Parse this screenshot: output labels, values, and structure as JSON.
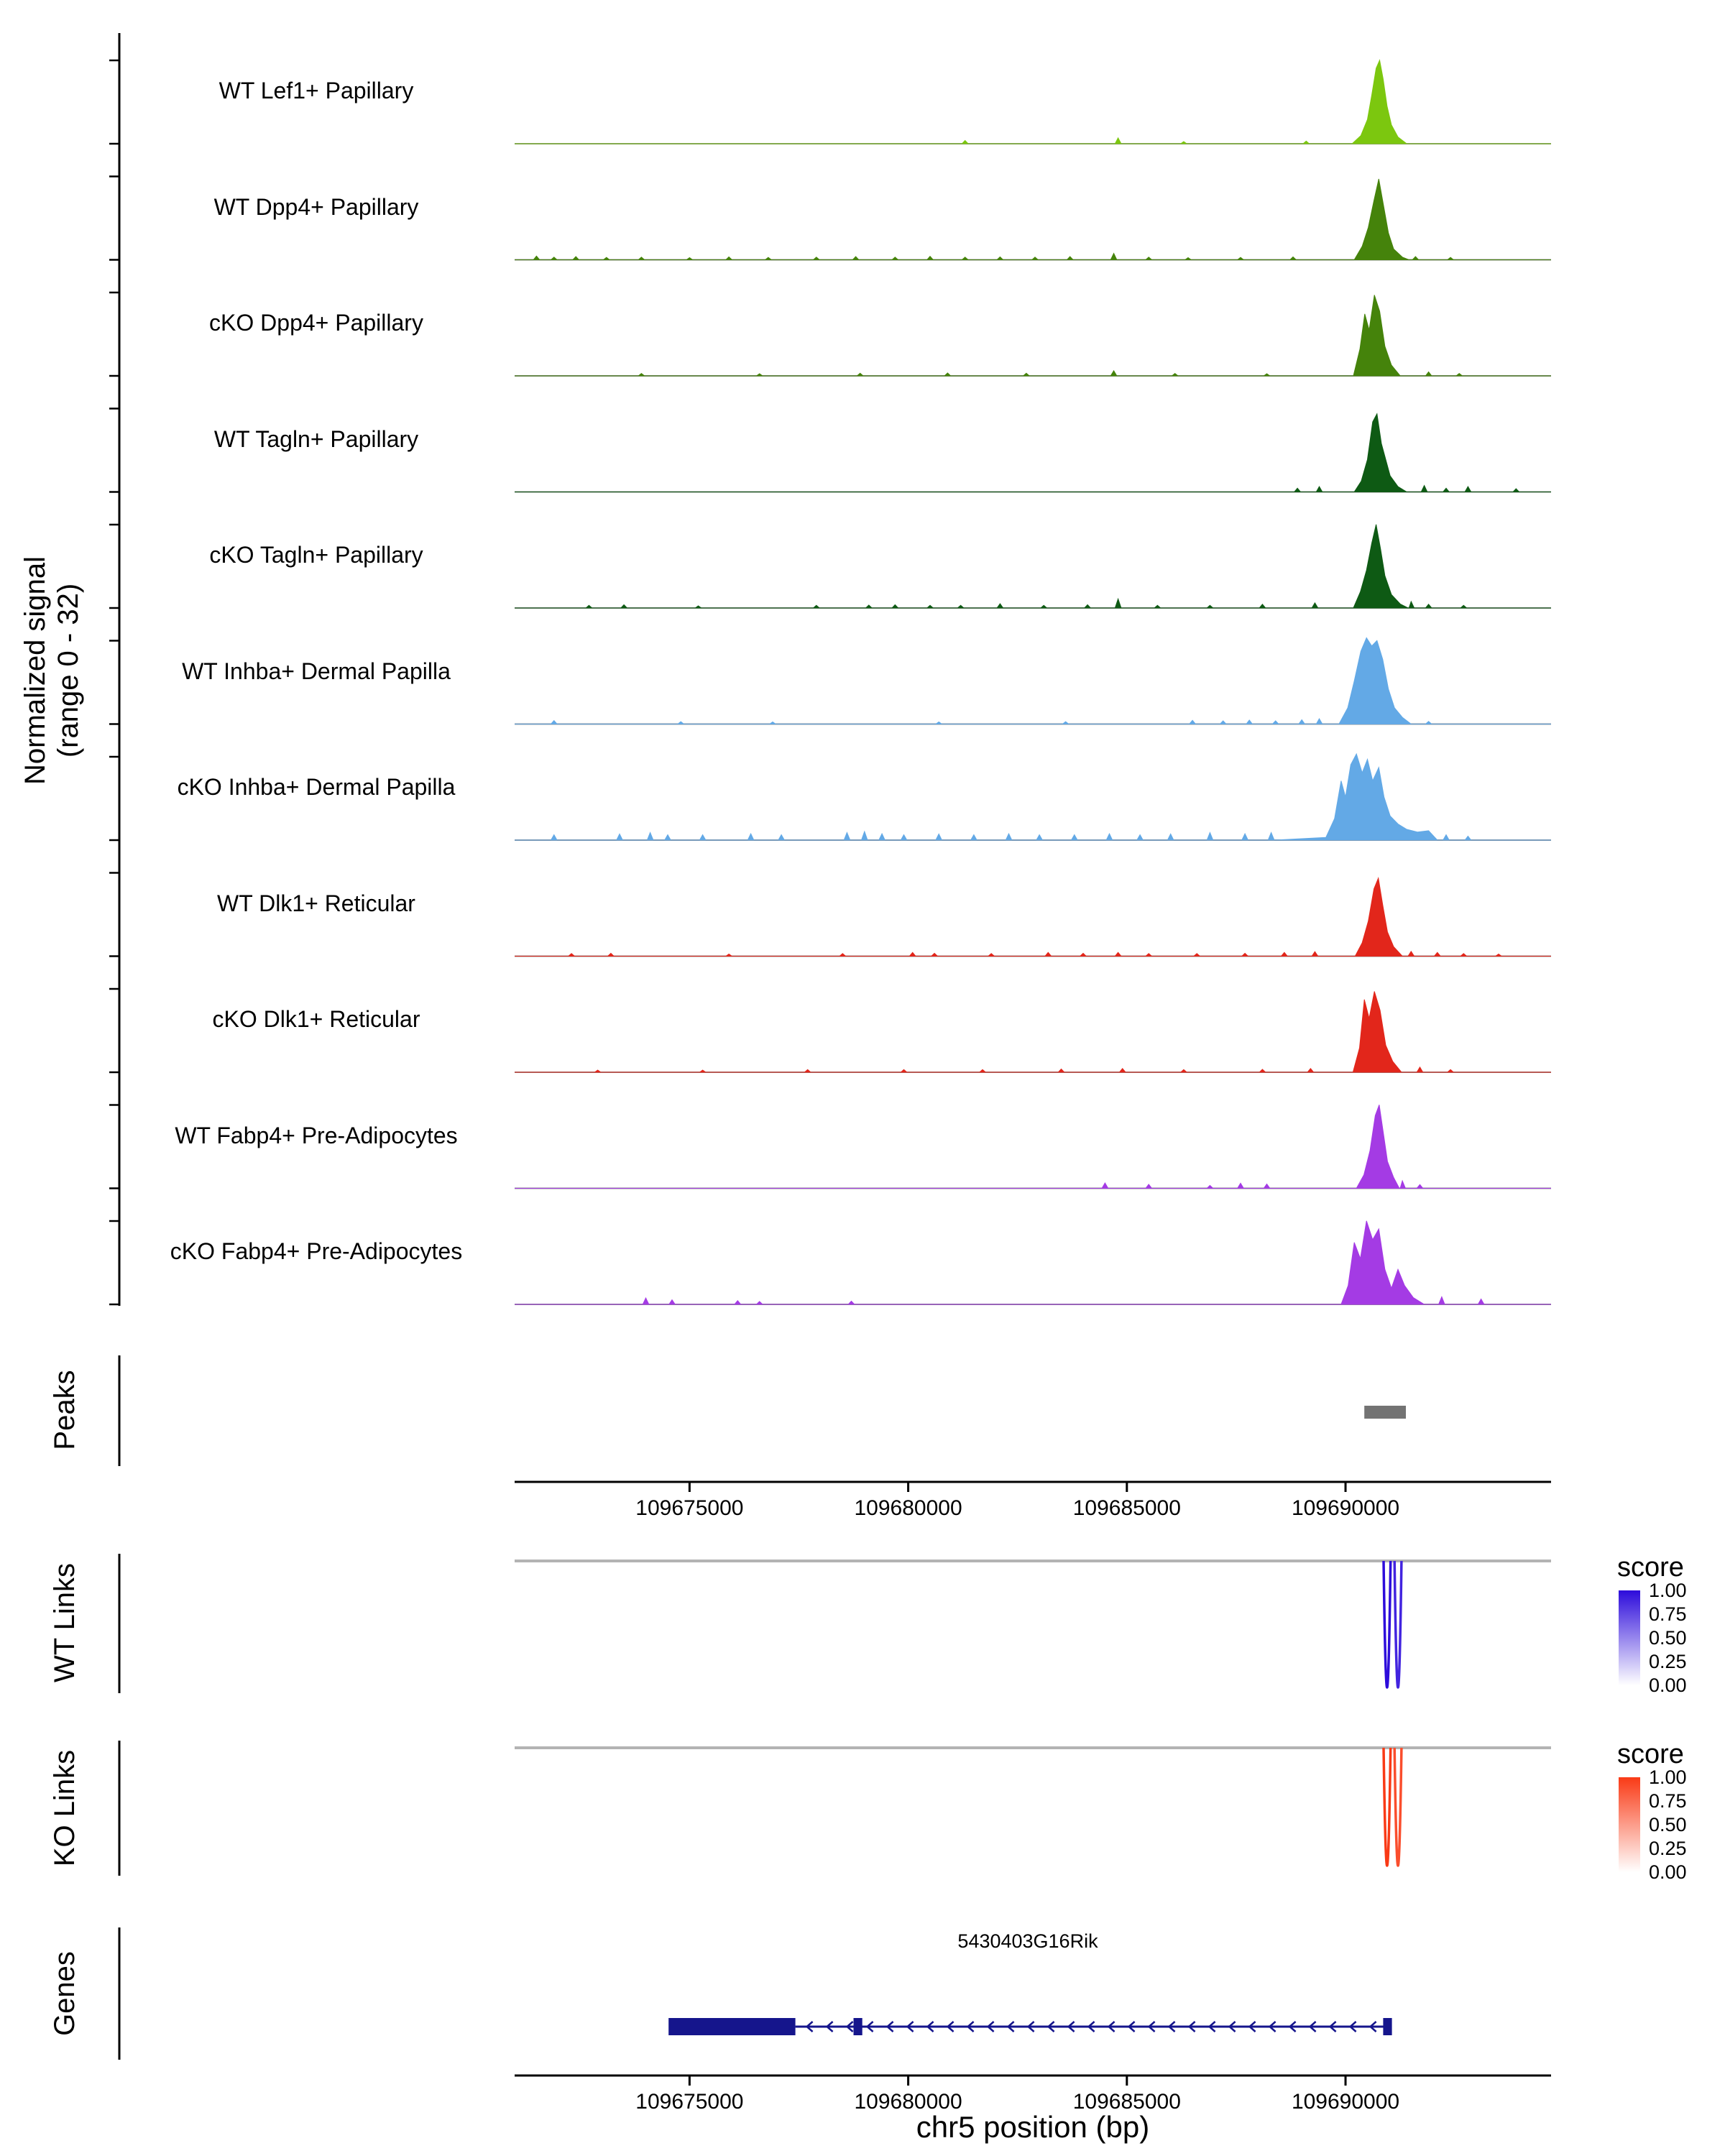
{
  "labels": {
    "y_axis_line1": "Normalized signal",
    "y_axis_line2": "(range 0 - 32)",
    "x_axis_title": "chr5 position (bp)"
  },
  "sections": {
    "peaks": "Peaks",
    "wt_links": "WT Links",
    "ko_links": "KO Links",
    "genes": "Genes"
  },
  "legend": {
    "title": "score",
    "ticks": [
      "1.00",
      "0.75",
      "0.50",
      "0.25",
      "0.00"
    ]
  },
  "chart_data": {
    "type": "area",
    "chrom": "chr5",
    "xlim": [
      109671000,
      109694700
    ],
    "x_ticks": [
      109675000,
      109680000,
      109685000,
      109690000
    ],
    "xlabel": "chr5 position (bp)",
    "ylabel": "Normalized signal (range 0 - 32)",
    "signal_range": [
      0,
      32
    ],
    "tracks": [
      {
        "name": "WT Lef1+ Papillary",
        "color": "#7CC70F",
        "bumps": [
          [
            109681300,
            1.2
          ],
          [
            109684800,
            2.2
          ],
          [
            109686300,
            0.8
          ],
          [
            109689100,
            1.0
          ]
        ],
        "peak": [
          [
            109690150,
            0
          ],
          [
            109690350,
            3
          ],
          [
            109690500,
            9
          ],
          [
            109690600,
            18
          ],
          [
            109690700,
            28
          ],
          [
            109690780,
            31
          ],
          [
            109690860,
            24
          ],
          [
            109690950,
            14
          ],
          [
            109691050,
            7
          ],
          [
            109691200,
            2.5
          ],
          [
            109691400,
            0
          ]
        ]
      },
      {
        "name": "WT Dpp4+ Papillary",
        "color": "#45830B",
        "bumps": [
          [
            109671500,
            1.4
          ],
          [
            109671900,
            1.0
          ],
          [
            109672400,
            1.2
          ],
          [
            109673100,
            0.9
          ],
          [
            109673900,
            1.0
          ],
          [
            109675000,
            0.8
          ],
          [
            109675900,
            1.1
          ],
          [
            109676800,
            0.9
          ],
          [
            109677900,
            1.0
          ],
          [
            109678800,
            1.2
          ],
          [
            109679700,
            1.0
          ],
          [
            109680500,
            1.3
          ],
          [
            109681300,
            1.0
          ],
          [
            109682100,
            1.1
          ],
          [
            109682900,
            1.0
          ],
          [
            109683700,
            1.2
          ],
          [
            109684700,
            2.4
          ],
          [
            109685500,
            1.0
          ],
          [
            109686400,
            0.8
          ],
          [
            109687600,
            0.9
          ],
          [
            109688800,
            1.1
          ],
          [
            109691600,
            1.2
          ],
          [
            109692400,
            0.9
          ]
        ],
        "peak": [
          [
            109690200,
            0
          ],
          [
            109690380,
            5
          ],
          [
            109690520,
            12
          ],
          [
            109690650,
            22
          ],
          [
            109690760,
            30
          ],
          [
            109690870,
            20
          ],
          [
            109690980,
            10
          ],
          [
            109691100,
            4
          ],
          [
            109691300,
            1
          ],
          [
            109691450,
            0
          ]
        ]
      },
      {
        "name": "cKO Dpp4+ Papillary",
        "color": "#45830B",
        "bumps": [
          [
            109673900,
            0.9
          ],
          [
            109676600,
            0.8
          ],
          [
            109678900,
            1.0
          ],
          [
            109680900,
            1.1
          ],
          [
            109682700,
            1.0
          ],
          [
            109684700,
            1.9
          ],
          [
            109686100,
            0.9
          ],
          [
            109688200,
            0.8
          ],
          [
            109691900,
            1.5
          ],
          [
            109692600,
            0.9
          ]
        ],
        "peak": [
          [
            109690180,
            0
          ],
          [
            109690330,
            10
          ],
          [
            109690440,
            23
          ],
          [
            109690540,
            17
          ],
          [
            109690660,
            30
          ],
          [
            109690780,
            24
          ],
          [
            109690900,
            11
          ],
          [
            109691050,
            4
          ],
          [
            109691250,
            0
          ]
        ]
      },
      {
        "name": "WT Tagln+ Papillary",
        "color": "#0E5A14",
        "bumps": [
          [
            109688900,
            1.4
          ],
          [
            109689400,
            2.0
          ],
          [
            109691800,
            2.4
          ],
          [
            109692300,
            1.4
          ],
          [
            109692800,
            2.0
          ],
          [
            109693900,
            1.2
          ]
        ],
        "peak": [
          [
            109690200,
            0
          ],
          [
            109690360,
            4
          ],
          [
            109690500,
            12
          ],
          [
            109690620,
            26
          ],
          [
            109690720,
            29
          ],
          [
            109690820,
            18
          ],
          [
            109690920,
            12
          ],
          [
            109691020,
            6
          ],
          [
            109691200,
            2
          ],
          [
            109691400,
            0
          ]
        ]
      },
      {
        "name": "cKO Tagln+ Papillary",
        "color": "#0E5A14",
        "bumps": [
          [
            109672700,
            1.0
          ],
          [
            109673500,
            1.2
          ],
          [
            109675200,
            0.8
          ],
          [
            109677900,
            1.0
          ],
          [
            109679100,
            1.1
          ],
          [
            109679700,
            1.2
          ],
          [
            109680500,
            1.0
          ],
          [
            109681200,
            1.0
          ],
          [
            109682100,
            1.6
          ],
          [
            109683100,
            1.0
          ],
          [
            109684100,
            1.2
          ],
          [
            109684800,
            3.4
          ],
          [
            109685700,
            1.0
          ],
          [
            109686900,
            1.0
          ],
          [
            109688100,
            1.4
          ],
          [
            109689300,
            1.9
          ],
          [
            109691500,
            2.4
          ],
          [
            109691900,
            1.4
          ],
          [
            109692700,
            1.0
          ]
        ],
        "peak": [
          [
            109690180,
            0
          ],
          [
            109690340,
            6
          ],
          [
            109690480,
            14
          ],
          [
            109690600,
            24
          ],
          [
            109690700,
            31
          ],
          [
            109690800,
            22
          ],
          [
            109690900,
            12
          ],
          [
            109691050,
            5
          ],
          [
            109691250,
            1.5
          ],
          [
            109691450,
            0
          ]
        ]
      },
      {
        "name": "WT Inhba+ Dermal Papilla",
        "color": "#63A9E6",
        "bumps": [
          [
            109671900,
            1.3
          ],
          [
            109674800,
            0.9
          ],
          [
            109676900,
            0.8
          ],
          [
            109680700,
            0.8
          ],
          [
            109683600,
            0.9
          ],
          [
            109686500,
            1.4
          ],
          [
            109687200,
            1.2
          ],
          [
            109687800,
            1.5
          ],
          [
            109688400,
            1.2
          ],
          [
            109689000,
            1.6
          ],
          [
            109689400,
            2.0
          ],
          [
            109691900,
            1.0
          ]
        ],
        "peak": [
          [
            109689850,
            0
          ],
          [
            109690050,
            6
          ],
          [
            109690200,
            16
          ],
          [
            109690350,
            27
          ],
          [
            109690480,
            32
          ],
          [
            109690600,
            29
          ],
          [
            109690720,
            31
          ],
          [
            109690850,
            24
          ],
          [
            109690980,
            13
          ],
          [
            109691120,
            6
          ],
          [
            109691300,
            2.5
          ],
          [
            109691500,
            0
          ]
        ]
      },
      {
        "name": "cKO Inhba+ Dermal Papilla",
        "color": "#63A9E6",
        "bumps": [
          [
            109671900,
            2.0
          ],
          [
            109673400,
            2.3
          ],
          [
            109674100,
            2.8
          ],
          [
            109674500,
            2.0
          ],
          [
            109675300,
            2.0
          ],
          [
            109676400,
            2.4
          ],
          [
            109677100,
            2.0
          ],
          [
            109678600,
            2.8
          ],
          [
            109679000,
            3.2
          ],
          [
            109679400,
            2.4
          ],
          [
            109679900,
            2.0
          ],
          [
            109680700,
            2.3
          ],
          [
            109681500,
            2.0
          ],
          [
            109682300,
            2.4
          ],
          [
            109683000,
            2.0
          ],
          [
            109683800,
            2.0
          ],
          [
            109684600,
            2.4
          ],
          [
            109685300,
            2.0
          ],
          [
            109686000,
            2.3
          ],
          [
            109686900,
            2.8
          ],
          [
            109687700,
            2.4
          ],
          [
            109688300,
            2.8
          ],
          [
            109692300,
            2.0
          ],
          [
            109692800,
            1.5
          ]
        ],
        "peak": [
          [
            109689550,
            1
          ],
          [
            109689750,
            8
          ],
          [
            109689900,
            22
          ],
          [
            109690000,
            16
          ],
          [
            109690120,
            28
          ],
          [
            109690250,
            32
          ],
          [
            109690380,
            25
          ],
          [
            109690500,
            30
          ],
          [
            109690620,
            22
          ],
          [
            109690760,
            27
          ],
          [
            109690880,
            16
          ],
          [
            109691020,
            9
          ],
          [
            109691200,
            6
          ],
          [
            109691400,
            4
          ],
          [
            109691650,
            3
          ],
          [
            109691900,
            3.5
          ],
          [
            109692100,
            0
          ]
        ]
      },
      {
        "name": "WT Dlk1+ Reticular",
        "color": "#E2261B",
        "bumps": [
          [
            109672300,
            1.0
          ],
          [
            109673200,
            1.1
          ],
          [
            109675900,
            0.8
          ],
          [
            109678500,
            1.0
          ],
          [
            109680100,
            1.4
          ],
          [
            109680600,
            1.1
          ],
          [
            109681900,
            1.0
          ],
          [
            109683200,
            1.4
          ],
          [
            109684000,
            1.1
          ],
          [
            109684800,
            1.4
          ],
          [
            109685500,
            1.0
          ],
          [
            109686600,
            1.0
          ],
          [
            109687700,
            1.1
          ],
          [
            109688600,
            1.4
          ],
          [
            109689300,
            1.7
          ],
          [
            109691500,
            1.8
          ],
          [
            109692100,
            1.4
          ],
          [
            109692700,
            1.0
          ],
          [
            109693500,
            0.8
          ]
        ],
        "peak": [
          [
            109690220,
            0
          ],
          [
            109690380,
            5
          ],
          [
            109690520,
            13
          ],
          [
            109690650,
            25
          ],
          [
            109690750,
            29
          ],
          [
            109690850,
            19
          ],
          [
            109690960,
            9
          ],
          [
            109691100,
            3.5
          ],
          [
            109691300,
            0
          ]
        ]
      },
      {
        "name": "cKO Dlk1+ Reticular",
        "color": "#E2261B",
        "bumps": [
          [
            109672900,
            0.8
          ],
          [
            109675300,
            0.8
          ],
          [
            109677700,
            1.0
          ],
          [
            109679900,
            1.0
          ],
          [
            109681700,
            1.0
          ],
          [
            109683500,
            1.2
          ],
          [
            109684900,
            1.4
          ],
          [
            109686300,
            1.0
          ],
          [
            109688100,
            1.1
          ],
          [
            109689200,
            1.4
          ],
          [
            109691700,
            1.9
          ],
          [
            109692400,
            1.0
          ]
        ],
        "peak": [
          [
            109690170,
            0
          ],
          [
            109690320,
            9
          ],
          [
            109690430,
            27
          ],
          [
            109690540,
            20
          ],
          [
            109690660,
            30
          ],
          [
            109690790,
            23
          ],
          [
            109690920,
            10
          ],
          [
            109691080,
            4
          ],
          [
            109691280,
            0
          ]
        ]
      },
      {
        "name": "WT Fabp4+ Pre-Adipocytes",
        "color": "#A43BE4",
        "bumps": [
          [
            109684500,
            2.0
          ],
          [
            109685500,
            1.5
          ],
          [
            109686900,
            1.1
          ],
          [
            109687600,
            1.9
          ],
          [
            109688200,
            1.6
          ],
          [
            109691300,
            2.8
          ],
          [
            109691700,
            1.4
          ]
        ],
        "peak": [
          [
            109690250,
            0
          ],
          [
            109690420,
            5
          ],
          [
            109690560,
            14
          ],
          [
            109690680,
            27
          ],
          [
            109690770,
            31
          ],
          [
            109690860,
            21
          ],
          [
            109690960,
            10
          ],
          [
            109691100,
            4
          ],
          [
            109691250,
            0
          ]
        ]
      },
      {
        "name": "cKO Fabp4+ Pre-Adipocytes",
        "color": "#A43BE4",
        "bumps": [
          [
            109674000,
            2.4
          ],
          [
            109674600,
            1.7
          ],
          [
            109676100,
            1.4
          ],
          [
            109676600,
            1.1
          ],
          [
            109678700,
            1.2
          ],
          [
            109692200,
            2.8
          ],
          [
            109693100,
            2.0
          ]
        ],
        "peak": [
          [
            109689900,
            0
          ],
          [
            109690060,
            7
          ],
          [
            109690200,
            23
          ],
          [
            109690340,
            17
          ],
          [
            109690480,
            31
          ],
          [
            109690620,
            24
          ],
          [
            109690760,
            28
          ],
          [
            109690900,
            13
          ],
          [
            109691050,
            6
          ],
          [
            109691200,
            13
          ],
          [
            109691350,
            7
          ],
          [
            109691550,
            2.5
          ],
          [
            109691800,
            0
          ]
        ]
      }
    ],
    "peaks": [
      {
        "start": 109690430,
        "end": 109691380
      }
    ],
    "peak_color": "#737373",
    "links": {
      "baseline_color": "#B3B3B3",
      "wt_color": "#2D0CDB",
      "ko_color": "#F93A16",
      "wt": [
        {
          "anchor1": 109690870,
          "anchor2": 109691030,
          "score": 1.0
        },
        {
          "anchor1": 109691120,
          "anchor2": 109691280,
          "score": 0.9
        }
      ],
      "ko": [
        {
          "anchor1": 109690870,
          "anchor2": 109691030,
          "score": 1.0
        },
        {
          "anchor1": 109691120,
          "anchor2": 109691280,
          "score": 0.9
        }
      ]
    },
    "gene": {
      "name": "5430403G16Rik",
      "strand": "-",
      "color": "#15158C",
      "start": 109674520,
      "end": 109691060,
      "exons": [
        [
          109674520,
          109677420
        ],
        [
          109678750,
          109678950
        ],
        [
          109690860,
          109691060
        ]
      ]
    }
  }
}
